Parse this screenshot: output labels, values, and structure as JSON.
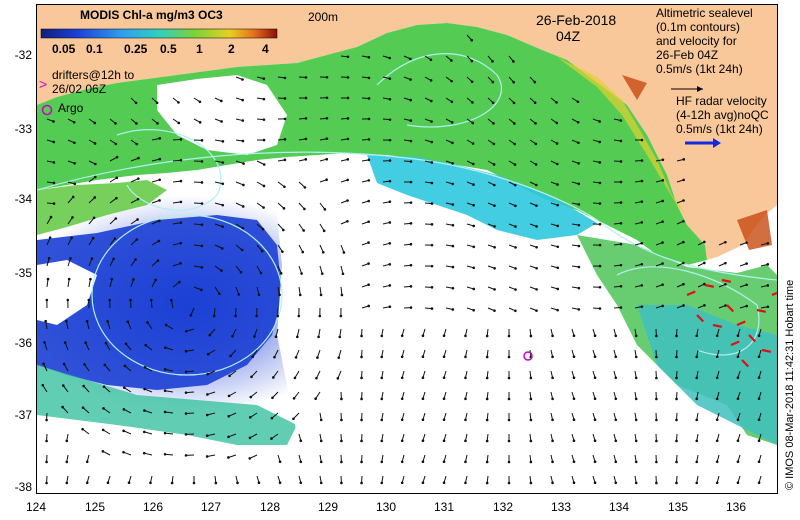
{
  "map": {
    "colorbar_title": "MODIS Chl-a mg/m3 OC3",
    "colorbar_ticks": [
      "0.05",
      "0.1",
      "0.25",
      "0.5",
      "1",
      "2",
      "4"
    ],
    "contour_label": "200m",
    "date": "26-Feb-2018",
    "time": "04Z",
    "altimetry_note": [
      "Altimetric sealevel",
      "(0.1m contours)",
      "and velocity for",
      "26-Feb 04Z"
    ],
    "altimetry_scale": "0.5m/s (1kt 24h)",
    "hf_note": [
      "HF radar velocity",
      "(4-12h avg)noQC"
    ],
    "hf_scale": "0.5m/s (1kt 24h)",
    "drifters_note": [
      "drifters@12h to",
      "26/02 06Z"
    ],
    "argo_label": "Argo",
    "credit": "© IMOS 08-Mar-2018 11:42:31 Hobart time",
    "y_ticks": [
      "-32",
      "-33",
      "-34",
      "-35",
      "-36",
      "-37",
      "-38"
    ],
    "x_ticks": [
      "124",
      "125",
      "126",
      "127",
      "128",
      "129",
      "130",
      "131",
      "132",
      "133",
      "134",
      "135",
      "136"
    ],
    "colors": {
      "land": "#f8c89a",
      "chl_low": "#1b3fd4",
      "chl_mid": "#2fc8e0",
      "chl_high": "#7ad23a",
      "chl_peak": "#c83a10",
      "hf_arrow": "#1428e0",
      "hf_red": "#e01010",
      "argo": "#cc00cc",
      "drifter": "#cc00cc"
    }
  }
}
